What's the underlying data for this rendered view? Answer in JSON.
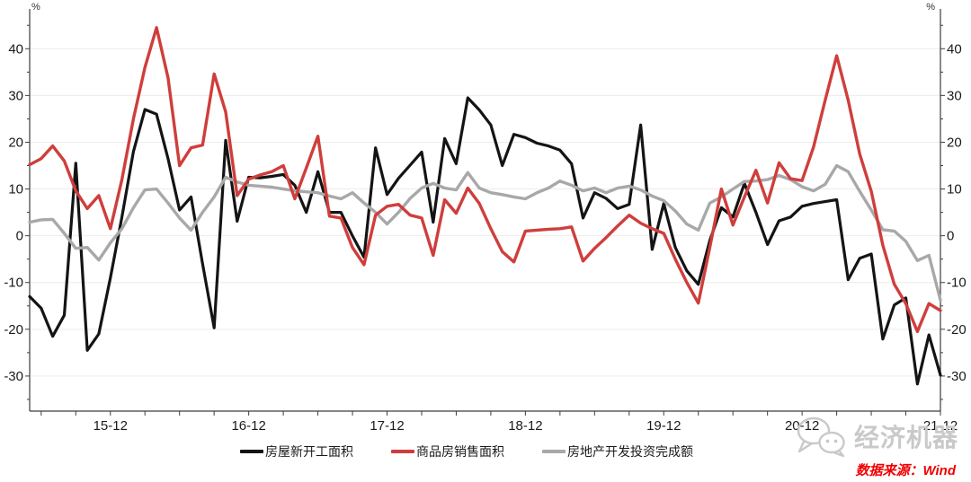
{
  "chart_data": {
    "type": "line",
    "title": "",
    "unit": "%",
    "grid": "horizontal",
    "legend_position": "bottom",
    "ylim": [
      -37.5,
      48.5
    ],
    "yticks": [
      40,
      30,
      20,
      10,
      0,
      -10,
      -20,
      -30
    ],
    "x_axis_labels_shown": [
      "15-12",
      "16-12",
      "17-12",
      "18-12",
      "19-12",
      "20-12",
      "21-12"
    ],
    "x": [
      "15-05",
      "15-06",
      "15-07",
      "15-08",
      "15-09",
      "15-10",
      "15-11",
      "15-12",
      "16-01",
      "16-02",
      "16-03",
      "16-04",
      "16-05",
      "16-06",
      "16-07",
      "16-08",
      "16-09",
      "16-10",
      "16-11",
      "16-12",
      "17-01",
      "17-02",
      "17-03",
      "17-04",
      "17-05",
      "17-06",
      "17-07",
      "17-08",
      "17-09",
      "17-10",
      "17-11",
      "17-12",
      "18-01",
      "18-02",
      "18-03",
      "18-04",
      "18-05",
      "18-06",
      "18-07",
      "18-08",
      "18-09",
      "18-10",
      "18-11",
      "18-12",
      "19-01",
      "19-02",
      "19-03",
      "19-04",
      "19-05",
      "19-06",
      "19-07",
      "19-08",
      "19-09",
      "19-10",
      "19-11",
      "19-12",
      "20-01",
      "20-02",
      "20-03",
      "20-04",
      "20-05",
      "20-06",
      "20-07",
      "20-08",
      "20-09",
      "20-10",
      "20-11",
      "20-12",
      "21-01",
      "21-02",
      "21-03",
      "21-04",
      "21-05",
      "21-06",
      "21-07",
      "21-08",
      "21-09",
      "21-10",
      "21-11",
      "21-12"
    ],
    "series": [
      {
        "key": "new-housing-starts",
        "name": "房屋新开工面积",
        "color": "#141414",
        "width": 3.2,
        "values": [
          -13,
          -15.5,
          -21.5,
          -17,
          15.5,
          -24.5,
          -21,
          -9,
          4,
          18,
          27,
          26,
          16.5,
          5.5,
          8.3,
          -6,
          -19.7,
          20.4,
          3.1,
          12.5,
          12.4,
          12.7,
          13.1,
          10.8,
          5,
          13.7,
          5,
          5,
          0,
          -4.6,
          18.8,
          8.8,
          12.3,
          15.1,
          17.9,
          2.9,
          20.8,
          15.4,
          29.5,
          26.9,
          23.7,
          15,
          21.7,
          21,
          19.8,
          19.2,
          18.3,
          15.4,
          3.8,
          9.2,
          8,
          5.8,
          6.7,
          23.7,
          -2.9,
          6.9,
          -2.5,
          -7.5,
          -10.4,
          -1,
          6,
          4,
          11.2,
          5,
          -1.9,
          3.2,
          4,
          6.3,
          6.9,
          7.3,
          7.7,
          -9.4,
          -4.8,
          -3.9,
          -22.1,
          -14.8,
          -13.3,
          -31.7,
          -21.2,
          -29.8
        ]
      },
      {
        "key": "commodity-housing-sales",
        "name": "商品房销售面积",
        "color": "#cf3e3c",
        "width": 3.4,
        "values": [
          15.2,
          16.5,
          19.2,
          16,
          9.6,
          5.8,
          8.6,
          1.5,
          12,
          25,
          36,
          44.5,
          33.8,
          15,
          18.8,
          19.4,
          34.6,
          26.5,
          8.6,
          12.1,
          13,
          13.7,
          15,
          7.9,
          14.5,
          21.3,
          4.2,
          3.8,
          -2.5,
          -6.2,
          4.4,
          6.3,
          6.7,
          4.4,
          3.8,
          -4.2,
          7.7,
          4.8,
          10.2,
          6.9,
          1.5,
          -3.4,
          -5.6,
          1,
          1.2,
          1.4,
          1.5,
          1.9,
          -5.4,
          -2.7,
          -0.4,
          2.1,
          4.4,
          2.7,
          1.5,
          0.5,
          -5,
          -10,
          -14.4,
          -2.5,
          10,
          2.3,
          8.3,
          14,
          7,
          15.6,
          12.2,
          11.8,
          19,
          29,
          38.5,
          29,
          17.5,
          9.5,
          -2,
          -10.4,
          -14.5,
          -20.5,
          -14.5,
          -16
        ]
      },
      {
        "key": "real-estate-investment",
        "name": "房地产开发投资完成额",
        "color": "#a8a8a8",
        "width": 3.4,
        "values": [
          2.9,
          3.4,
          3.5,
          0.5,
          -2.7,
          -2.5,
          -5.2,
          -1.5,
          1.5,
          6,
          9.8,
          10,
          7,
          3.8,
          1.2,
          5,
          8.3,
          12.5,
          11.5,
          10.8,
          10.6,
          10.4,
          10,
          9.6,
          9.4,
          9.2,
          8.5,
          7.9,
          9.2,
          7,
          5,
          2.5,
          5,
          8,
          10.2,
          11.2,
          10.2,
          9.8,
          13.5,
          10.2,
          9.2,
          8.8,
          8.3,
          7.9,
          9.2,
          10.2,
          11.7,
          10.8,
          9.6,
          10.2,
          9.2,
          10.2,
          10.6,
          9.8,
          8.5,
          7.5,
          5.3,
          2.5,
          1.2,
          7,
          8.3,
          10,
          11.6,
          11.7,
          12,
          12.9,
          12,
          10.5,
          9.6,
          11,
          15,
          13.7,
          9.5,
          5.5,
          1.3,
          1,
          -1.2,
          -5.3,
          -4.2,
          -13.8
        ]
      }
    ],
    "colors": {
      "grid": "#ececec",
      "axis": "#3d3d3d",
      "tick_label": "#1a1a1a"
    }
  },
  "watermark": {
    "text": "经济机器",
    "icon": "wechat-icon",
    "color": "#c9c9c9"
  },
  "footer": {
    "source_label": "数据来源：Wind",
    "color": "#f20000"
  }
}
